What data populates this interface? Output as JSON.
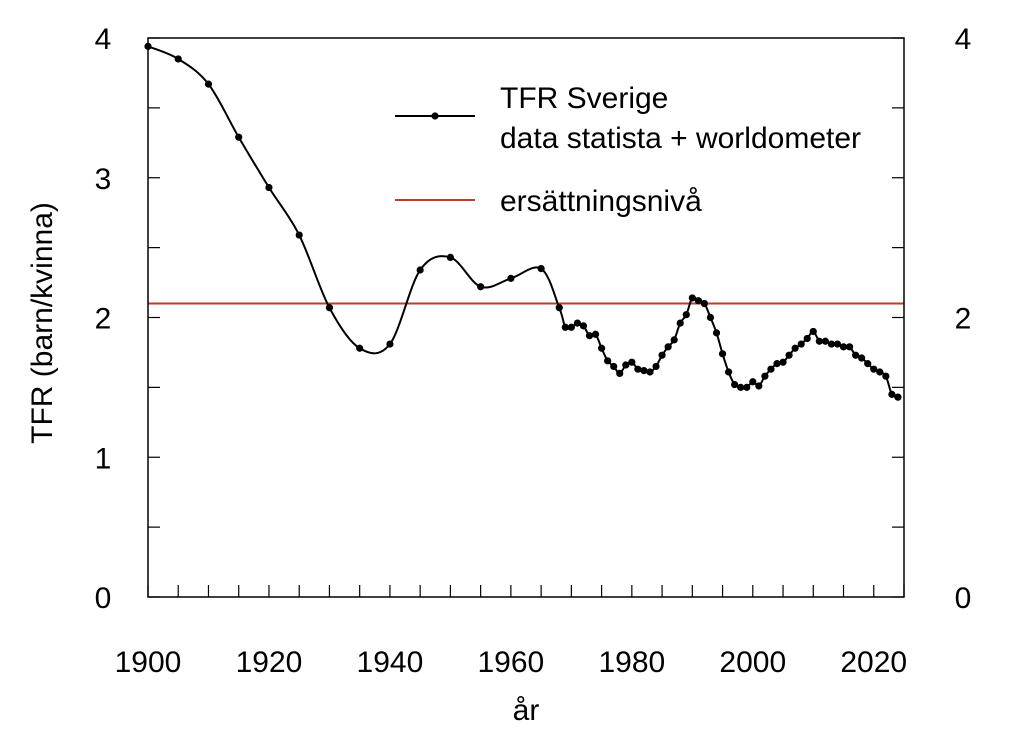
{
  "chart_data": {
    "type": "line",
    "title": "",
    "xlabel": "år",
    "ylabel": "TFR (barn/kvinna)",
    "xlim": [
      1900,
      2025
    ],
    "ylim": [
      0,
      4
    ],
    "x_ticks": [
      "1900",
      "1920",
      "1940",
      "1960",
      "1980",
      "2000",
      "2020"
    ],
    "y_ticks": [
      "0",
      "1",
      "2",
      "3",
      "4"
    ],
    "y_ticks_right": [
      "0",
      "2",
      "4"
    ],
    "grid": false,
    "legend_position": "top-right",
    "series": [
      {
        "name": "TFR Sverige",
        "name_line2": "data statista + worldometer",
        "color": "#000000",
        "marker": "dot",
        "x": [
          1900,
          1905,
          1910,
          1915,
          1920,
          1925,
          1930,
          1935,
          1940,
          1945,
          1950,
          1955,
          1960,
          1965,
          1968,
          1969,
          1970,
          1971,
          1972,
          1973,
          1974,
          1975,
          1976,
          1977,
          1978,
          1979,
          1980,
          1981,
          1982,
          1983,
          1984,
          1985,
          1986,
          1987,
          1988,
          1989,
          1990,
          1991,
          1992,
          1993,
          1994,
          1995,
          1996,
          1997,
          1998,
          1999,
          2000,
          2001,
          2002,
          2003,
          2004,
          2005,
          2006,
          2007,
          2008,
          2009,
          2010,
          2011,
          2012,
          2013,
          2014,
          2015,
          2016,
          2017,
          2018,
          2019,
          2020,
          2021,
          2022,
          2023,
          2024
        ],
        "y": [
          3.94,
          3.85,
          3.67,
          3.29,
          2.93,
          2.59,
          2.07,
          1.78,
          1.81,
          2.34,
          2.43,
          2.22,
          2.28,
          2.35,
          2.07,
          1.93,
          1.93,
          1.96,
          1.94,
          1.87,
          1.88,
          1.78,
          1.69,
          1.65,
          1.6,
          1.66,
          1.68,
          1.63,
          1.62,
          1.61,
          1.65,
          1.73,
          1.79,
          1.84,
          1.96,
          2.02,
          2.14,
          2.12,
          2.1,
          2.0,
          1.89,
          1.74,
          1.61,
          1.52,
          1.5,
          1.5,
          1.54,
          1.51,
          1.58,
          1.63,
          1.67,
          1.68,
          1.73,
          1.78,
          1.81,
          1.85,
          1.9,
          1.83,
          1.83,
          1.81,
          1.81,
          1.79,
          1.79,
          1.73,
          1.71,
          1.67,
          1.63,
          1.61,
          1.58,
          1.45,
          1.43
        ]
      },
      {
        "name": "ersättningsnivå",
        "color": "#c0392b",
        "marker": "none",
        "x": [
          1900,
          2025
        ],
        "y": [
          2.1,
          2.1
        ]
      }
    ]
  }
}
